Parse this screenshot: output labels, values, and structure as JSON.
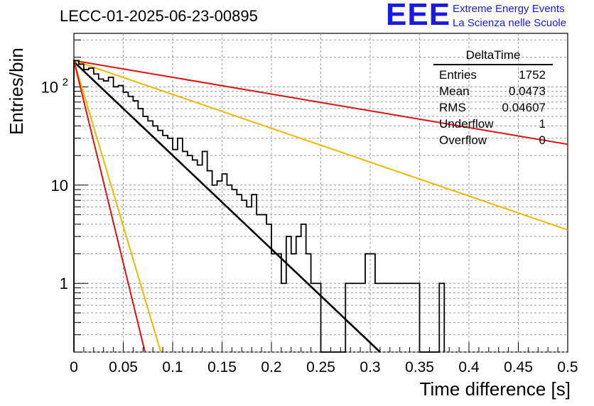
{
  "header": {
    "title": "LECC-01-2025-06-23-00895",
    "logo_letters": "EEE",
    "logo_line1": "Extreme Energy Events",
    "logo_line2": "La Scienza nelle Scuole"
  },
  "stats_box": {
    "title": "DeltaTime",
    "rows": [
      {
        "label": "Entries",
        "value": "1752"
      },
      {
        "label": "Mean",
        "value": "0.0473"
      },
      {
        "label": "RMS",
        "value": "0.04607"
      },
      {
        "label": "Underflow",
        "value": "1"
      },
      {
        "label": "Overflow",
        "value": "0"
      }
    ]
  },
  "chart_data": {
    "type": "line",
    "title": "LECC-01-2025-06-23-00895",
    "xlabel": "Time difference [s]",
    "ylabel": "Entries/bin",
    "xlim": [
      0,
      0.5
    ],
    "ylim": [
      0.2,
      350
    ],
    "yscale": "log",
    "grid": true,
    "x_ticks": [
      "0",
      "0.05",
      "0.1",
      "0.15",
      "0.2",
      "0.25",
      "0.3",
      "0.35",
      "0.4",
      "0.45",
      "0.5"
    ],
    "y_ticks": [
      "1",
      "10",
      "10^2"
    ],
    "histogram": {
      "bin_width": 0.005,
      "values": [
        185,
        170,
        150,
        155,
        135,
        120,
        115,
        125,
        100,
        103,
        88,
        80,
        72,
        60,
        50,
        45,
        40,
        36,
        32,
        30,
        23,
        30,
        22,
        20,
        18,
        16,
        22,
        14,
        10,
        11,
        13,
        10,
        9,
        8,
        7,
        6,
        8,
        5,
        5,
        4,
        2,
        2,
        1,
        3,
        2,
        3,
        4,
        2,
        1,
        1,
        0,
        0,
        0,
        0,
        0,
        1,
        1,
        1,
        1,
        2,
        2,
        1,
        1,
        1,
        1,
        1,
        1,
        1,
        1,
        1,
        0,
        0,
        0,
        0,
        1
      ]
    },
    "lines": [
      {
        "color": "#000000",
        "x": [
          0,
          0.31
        ],
        "y": [
          180,
          0.2
        ]
      },
      {
        "color": "#dd1111",
        "x": [
          0,
          0.5
        ],
        "y": [
          185,
          26
        ]
      },
      {
        "color": "#f0b800",
        "x": [
          0,
          0.5
        ],
        "y": [
          185,
          3.5
        ]
      },
      {
        "color": "#f0b800",
        "x": [
          0,
          0.088
        ],
        "y": [
          185,
          0.2
        ]
      },
      {
        "color": "#dd1111",
        "x": [
          0,
          0.072
        ],
        "y": [
          185,
          0.2
        ]
      }
    ]
  }
}
